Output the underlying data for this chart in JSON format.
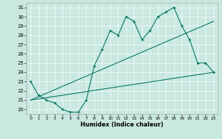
{
  "xlabel": "Humidex (Indice chaleur)",
  "bg_color": "#c8e8e0",
  "line_color": "#007060",
  "grid_color": "#ffffff",
  "xlim": [
    -0.5,
    23.5
  ],
  "ylim": [
    19.5,
    31.5
  ],
  "xticks": [
    0,
    1,
    2,
    3,
    4,
    5,
    6,
    7,
    8,
    9,
    10,
    11,
    12,
    13,
    14,
    15,
    16,
    17,
    18,
    19,
    20,
    21,
    22,
    23
  ],
  "yticks": [
    20,
    21,
    22,
    23,
    24,
    25,
    26,
    27,
    28,
    29,
    30,
    31
  ],
  "line1_x": [
    0,
    1,
    2,
    3,
    4,
    5,
    6,
    7,
    8,
    9,
    10,
    11,
    12,
    13,
    14,
    15,
    16,
    17,
    18,
    19,
    20,
    21,
    22,
    23
  ],
  "line1_y": [
    23,
    21.5,
    21,
    20.7,
    20,
    19.7,
    19.7,
    21,
    24.7,
    26.5,
    28.5,
    28,
    30,
    29.5,
    27.5,
    28.5,
    30,
    30.5,
    31,
    29,
    27.5,
    25,
    25,
    24
  ],
  "line2_x": [
    0,
    23
  ],
  "line2_y": [
    21,
    24
  ],
  "line3_x": [
    0,
    23
  ],
  "line3_y": [
    21,
    29.5
  ]
}
